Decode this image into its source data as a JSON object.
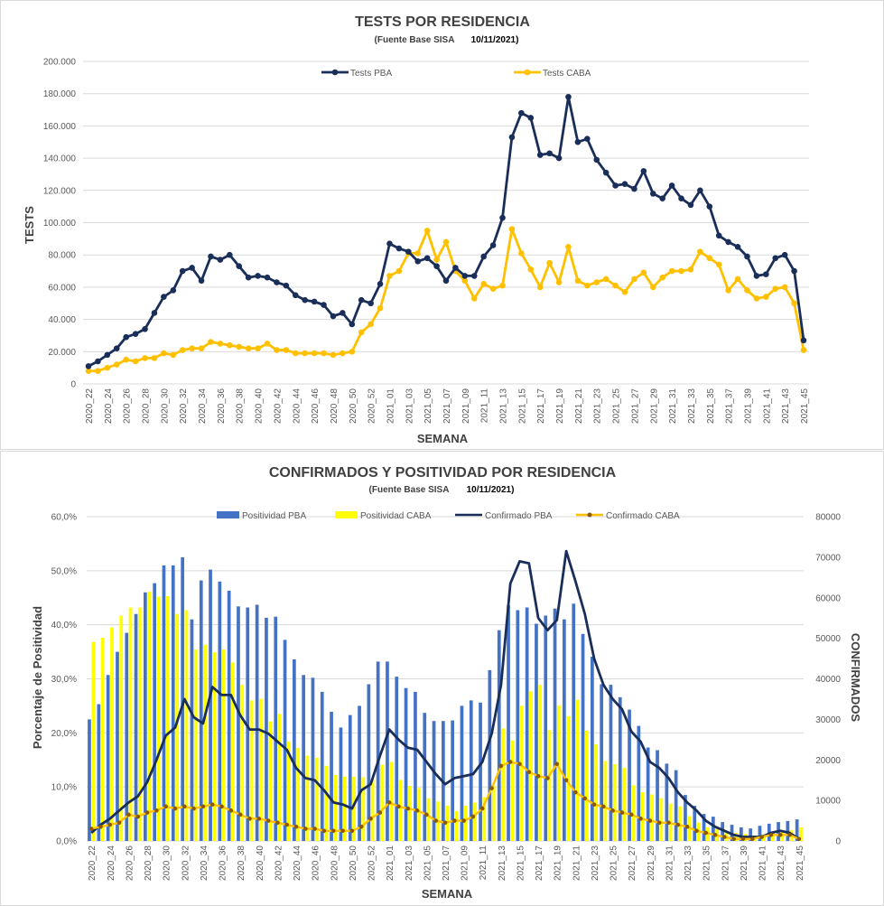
{
  "chart_data": [
    {
      "type": "line",
      "title": "TESTS POR RESIDENCIA",
      "subtitle": "(Fuente Base SISA",
      "date": "10/11/2021)",
      "xlabel": "SEMANA",
      "ylabel": "TESTS",
      "ylim": [
        0,
        200000
      ],
      "yticks": [
        "0",
        "20.000",
        "40.000",
        "60.000",
        "80.000",
        "100.000",
        "120.000",
        "140.000",
        "160.000",
        "180.000",
        "200.000"
      ],
      "legend_position": "top",
      "x": [
        "2020_22",
        "2020_23",
        "2020_24",
        "2020_25",
        "2020_26",
        "2020_27",
        "2020_28",
        "2020_29",
        "2020_30",
        "2020_31",
        "2020_32",
        "2020_33",
        "2020_34",
        "2020_35",
        "2020_36",
        "2020_37",
        "2020_38",
        "2020_39",
        "2020_40",
        "2020_41",
        "2020_42",
        "2020_43",
        "2020_44",
        "2020_45",
        "2020_46",
        "2020_47",
        "2020_48",
        "2020_49",
        "2020_50",
        "2020_51",
        "2020_52",
        "2020_53",
        "2021_01",
        "2021_02",
        "2021_03",
        "2021_04",
        "2021_05",
        "2021_06",
        "2021_07",
        "2021_08",
        "2021_09",
        "2021_10",
        "2021_11",
        "2021_12",
        "2021_13",
        "2021_14",
        "2021_15",
        "2021_16",
        "2021_17",
        "2021_18",
        "2021_19",
        "2021_20",
        "2021_21",
        "2021_22",
        "2021_23",
        "2021_24",
        "2021_25",
        "2021_26",
        "2021_27",
        "2021_28",
        "2021_29",
        "2021_30",
        "2021_31",
        "2021_32",
        "2021_33",
        "2021_34",
        "2021_35",
        "2021_36",
        "2021_37",
        "2021_38",
        "2021_39",
        "2021_40",
        "2021_41",
        "2021_42",
        "2021_43",
        "2021_44",
        "2021_45"
      ],
      "xticks": [
        "2020_22",
        "2020_24",
        "2020_26",
        "2020_28",
        "2020_30",
        "2020_32",
        "2020_34",
        "2020_36",
        "2020_38",
        "2020_40",
        "2020_42",
        "2020_44",
        "2020_46",
        "2020_48",
        "2020_50",
        "2020_52",
        "2021_01",
        "2021_03",
        "2021_05",
        "2021_07",
        "2021_09",
        "2021_11",
        "2021_13",
        "2021_15",
        "2021_17",
        "2021_19",
        "2021_21",
        "2021_23",
        "2021_25",
        "2021_27",
        "2021_29",
        "2021_31",
        "2021_33",
        "2021_35",
        "2021_37",
        "2021_39",
        "2021_41",
        "2021_43",
        "2021_45"
      ],
      "series": [
        {
          "name": "Tests PBA",
          "color": "#1a2e5a",
          "values": [
            11000,
            14000,
            18000,
            22000,
            29000,
            31000,
            34000,
            44000,
            54000,
            58000,
            70000,
            72000,
            64000,
            79000,
            77000,
            80000,
            73000,
            66000,
            67000,
            66000,
            63000,
            61000,
            55000,
            52000,
            51000,
            49000,
            42000,
            44000,
            37000,
            52000,
            50000,
            62000,
            87000,
            84000,
            82000,
            76000,
            78000,
            73000,
            64000,
            72000,
            67000,
            67000,
            79000,
            86000,
            103000,
            153000,
            168000,
            165000,
            142000,
            143000,
            140000,
            178000,
            150000,
            152000,
            139000,
            131000,
            123000,
            124000,
            121000,
            132000,
            118000,
            115000,
            123000,
            115000,
            111000,
            120000,
            110000,
            92000,
            88000,
            85000,
            79000,
            67000,
            68000,
            78000,
            80000,
            70000,
            27000
          ]
        },
        {
          "name": "Tests CABA",
          "color": "#ffc000",
          "values": [
            8000,
            8000,
            10000,
            12000,
            15000,
            14000,
            16000,
            16000,
            19000,
            18000,
            21000,
            22000,
            22000,
            26000,
            25000,
            24000,
            23000,
            22000,
            22000,
            25000,
            21000,
            21000,
            19000,
            19000,
            19000,
            19000,
            18000,
            19000,
            20000,
            32000,
            37000,
            47000,
            67000,
            70000,
            81000,
            81000,
            95000,
            77000,
            88000,
            70000,
            64000,
            53000,
            62000,
            59000,
            61000,
            96000,
            81000,
            71000,
            60000,
            75000,
            63000,
            85000,
            64000,
            61000,
            63000,
            65000,
            61000,
            57000,
            65000,
            69000,
            60000,
            66000,
            70000,
            70000,
            71000,
            82000,
            78000,
            74000,
            58000,
            65000,
            58000,
            53000,
            54000,
            59000,
            60000,
            50000,
            21000
          ]
        }
      ]
    },
    {
      "type": "bar",
      "title": "CONFIRMADOS Y POSITIVIDAD POR RESIDENCIA",
      "subtitle": "(Fuente Base SISA",
      "date": "10/11/2021)",
      "xlabel": "SEMANA",
      "ylabel": "Porcentaje de Positividad",
      "y2label": "CONFIRMADOS",
      "ylim": [
        0,
        60
      ],
      "y2lim": [
        0,
        80000
      ],
      "yticks": [
        "0,0%",
        "10,0%",
        "20,0%",
        "30,0%",
        "40,0%",
        "50,0%",
        "60,0%"
      ],
      "y2ticks": [
        "0",
        "10000",
        "20000",
        "30000",
        "40000",
        "50000",
        "60000",
        "70000",
        "80000"
      ],
      "legend_position": "top",
      "x": [
        "2020_22",
        "2020_23",
        "2020_24",
        "2020_25",
        "2020_26",
        "2020_27",
        "2020_28",
        "2020_29",
        "2020_30",
        "2020_31",
        "2020_32",
        "2020_33",
        "2020_34",
        "2020_35",
        "2020_36",
        "2020_37",
        "2020_38",
        "2020_39",
        "2020_40",
        "2020_41",
        "2020_42",
        "2020_43",
        "2020_44",
        "2020_45",
        "2020_46",
        "2020_47",
        "2020_48",
        "2020_49",
        "2020_50",
        "2020_51",
        "2020_52",
        "2020_53",
        "2021_01",
        "2021_02",
        "2021_03",
        "2021_04",
        "2021_05",
        "2021_06",
        "2021_07",
        "2021_08",
        "2021_09",
        "2021_10",
        "2021_11",
        "2021_12",
        "2021_13",
        "2021_14",
        "2021_15",
        "2021_16",
        "2021_17",
        "2021_18",
        "2021_19",
        "2021_20",
        "2021_21",
        "2021_22",
        "2021_23",
        "2021_24",
        "2021_25",
        "2021_26",
        "2021_27",
        "2021_28",
        "2021_29",
        "2021_30",
        "2021_31",
        "2021_32",
        "2021_33",
        "2021_34",
        "2021_35",
        "2021_36",
        "2021_37",
        "2021_38",
        "2021_39",
        "2021_40",
        "2021_41",
        "2021_42",
        "2021_43",
        "2021_44",
        "2021_45"
      ],
      "xticks": [
        "2020_22",
        "2020_24",
        "2020_26",
        "2020_28",
        "2020_30",
        "2020_32",
        "2020_34",
        "2020_36",
        "2020_38",
        "2020_40",
        "2020_42",
        "2020_44",
        "2020_46",
        "2020_48",
        "2020_50",
        "2020_52",
        "2021_01",
        "2021_03",
        "2021_05",
        "2021_07",
        "2021_09",
        "2021_11",
        "2021_13",
        "2021_15",
        "2021_17",
        "2021_19",
        "2021_21",
        "2021_23",
        "2021_25",
        "2021_27",
        "2021_29",
        "2021_31",
        "2021_33",
        "2021_35",
        "2021_37",
        "2021_39",
        "2021_41",
        "2021_43",
        "2021_45"
      ],
      "bar_series": [
        {
          "name": "Positividad PBA",
          "color": "#4472c4",
          "values": [
            22.5,
            25.3,
            30.7,
            35.0,
            38.5,
            42.0,
            46.0,
            47.7,
            51.0,
            51.0,
            52.5,
            41.0,
            48.2,
            50.2,
            48.0,
            46.3,
            43.4,
            43.2,
            43.7,
            41.3,
            41.5,
            37.2,
            33.6,
            30.7,
            30.2,
            27.6,
            23.9,
            21.0,
            23.3,
            25.0,
            29.0,
            33.2,
            33.2,
            30.4,
            28.3,
            27.6,
            23.7,
            22.2,
            22.2,
            22.3,
            25.0,
            26.0,
            25.6,
            31.6,
            39.0,
            43.6,
            42.7,
            43.2,
            40.2,
            41.7,
            43.0,
            41.0,
            43.9,
            38.3,
            34.1,
            29.0,
            28.9,
            26.6,
            24.3,
            21.3,
            17.3,
            16.8,
            14.3,
            13.1,
            8.5,
            6.5,
            5.0,
            4.5,
            3.5,
            3.0,
            2.5,
            2.3,
            2.8,
            3.2,
            3.5,
            3.7,
            4.0
          ]
        },
        {
          "name": "Positividad CABA",
          "color": "#ffff00",
          "values": [
            36.8,
            37.6,
            39.5,
            41.7,
            43.2,
            43.2,
            46.1,
            45.2,
            45.3,
            42.0,
            42.7,
            35.4,
            36.3,
            34.9,
            35.4,
            33.0,
            28.9,
            26.0,
            26.3,
            22.1,
            23.5,
            18.4,
            17.2,
            15.8,
            15.4,
            13.9,
            12.2,
            11.9,
            11.9,
            11.8,
            11.4,
            14.1,
            14.6,
            11.3,
            10.2,
            9.8,
            7.9,
            7.3,
            6.5,
            5.5,
            6.5,
            7.1,
            8.1,
            10.2,
            20.8,
            18.6,
            25.0,
            27.7,
            28.9,
            20.5,
            25.1,
            23.1,
            26.1,
            20.4,
            17.9,
            14.8,
            14.2,
            13.5,
            10.3,
            9.0,
            8.6,
            7.9,
            6.9,
            6.4,
            4.6,
            3.4,
            2.5,
            2.2,
            1.8,
            1.5,
            1.3,
            1.0,
            1.0,
            1.4,
            1.8,
            2.0,
            2.5
          ]
        }
      ],
      "line_series": [
        {
          "name": "Confirmado PBA",
          "color": "#1a2e5a",
          "values": [
            2000,
            4000,
            5500,
            7500,
            9500,
            11000,
            14500,
            20000,
            26000,
            28000,
            35000,
            30500,
            29000,
            38000,
            36000,
            36000,
            31000,
            27500,
            27500,
            26500,
            24500,
            22500,
            18000,
            15500,
            15000,
            12500,
            9500,
            9000,
            8000,
            12500,
            14000,
            21000,
            27500,
            25000,
            23000,
            22500,
            19500,
            16500,
            14000,
            15500,
            16000,
            16500,
            19500,
            26500,
            38500,
            63500,
            69000,
            68500,
            55000,
            52000,
            54500,
            71500,
            64000,
            56000,
            45000,
            38500,
            35000,
            32500,
            27000,
            24500,
            19500,
            18000,
            15500,
            12000,
            9500,
            7500,
            5000,
            3500,
            2500,
            1500,
            1000,
            1000,
            1000,
            2000,
            2500,
            2000,
            500
          ]
        },
        {
          "name": "Confirmado CABA",
          "color": "#ffc000",
          "marker_color": "#8b5a00",
          "values": [
            3000,
            3500,
            4000,
            4500,
            6500,
            6000,
            7000,
            7500,
            8500,
            8000,
            8500,
            8000,
            8500,
            9000,
            8500,
            7500,
            6500,
            5500,
            5500,
            5000,
            4500,
            4000,
            3500,
            3000,
            3000,
            2500,
            2500,
            2500,
            2500,
            3500,
            5500,
            7000,
            9500,
            8500,
            8000,
            7500,
            6500,
            5000,
            4500,
            5000,
            5000,
            6000,
            8000,
            13000,
            18500,
            19500,
            19000,
            17000,
            16000,
            15500,
            19000,
            15000,
            12000,
            10500,
            9000,
            8500,
            7500,
            7000,
            6500,
            5500,
            5000,
            4500,
            4500,
            4000,
            3500,
            2500,
            2000,
            1500,
            1000,
            500,
            500,
            500,
            1000,
            1500,
            1500,
            1500,
            500
          ]
        }
      ]
    }
  ]
}
